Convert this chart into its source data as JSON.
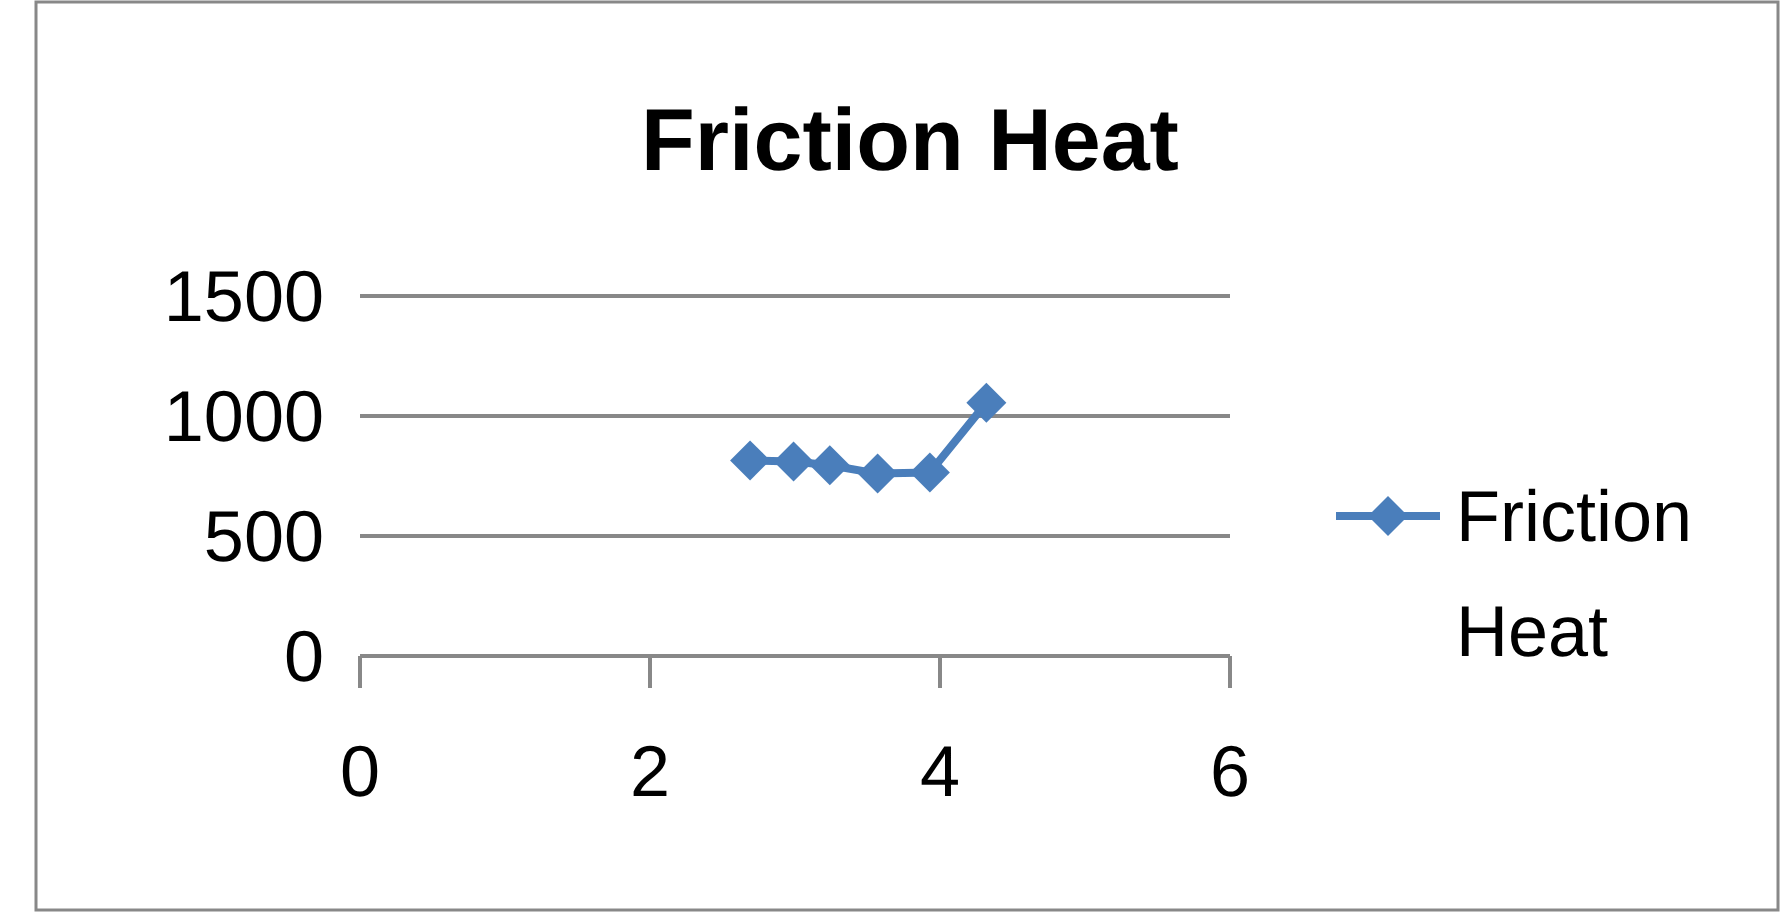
{
  "chart_data": {
    "type": "line",
    "title": "Friction Heat",
    "series": [
      {
        "name": "Friction Heat",
        "color": "#4a7ebb",
        "x": [
          2.69,
          2.99,
          3.24,
          3.57,
          3.93,
          4.32
        ],
        "values": [
          815,
          810,
          795,
          760,
          765,
          1055
        ]
      }
    ],
    "xlim": [
      0,
      6
    ],
    "xticks": [
      0,
      2,
      4,
      6
    ],
    "ylim": [
      0,
      1500
    ],
    "yticks": [
      0,
      500,
      1000,
      1500
    ],
    "grid": "y",
    "legend": "right",
    "marker": "diamond",
    "line_style": "solid"
  }
}
